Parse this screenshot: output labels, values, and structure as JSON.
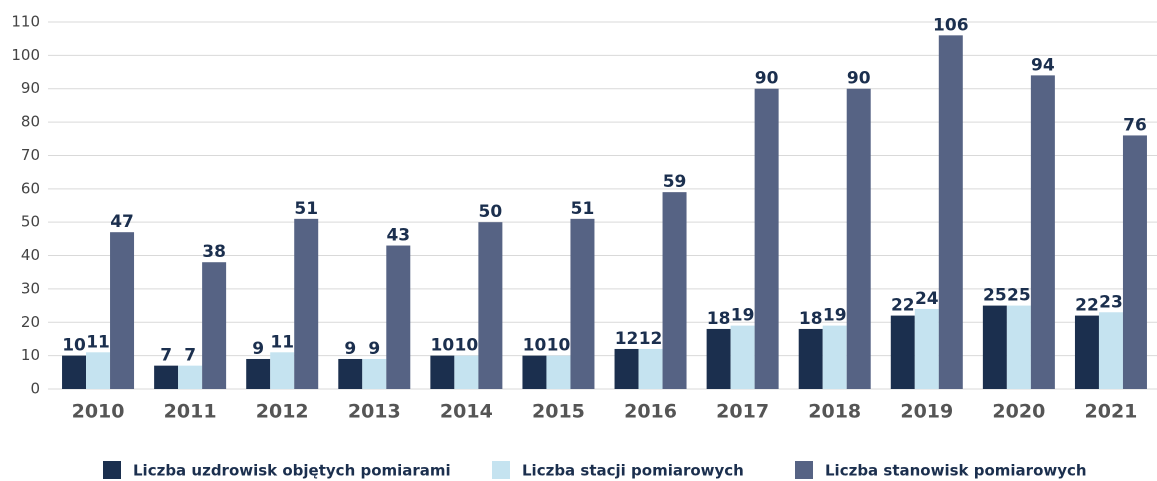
{
  "chart_data": {
    "type": "bar",
    "categories": [
      "2010",
      "2011",
      "2012",
      "2013",
      "2014",
      "2015",
      "2016",
      "2017",
      "2018",
      "2019",
      "2020",
      "2021"
    ],
    "series": [
      {
        "name": "Liczba uzdrowisk objętych pomiarami",
        "color": "#1b2f4e",
        "values": [
          10,
          7,
          9,
          9,
          10,
          10,
          12,
          18,
          18,
          22,
          25,
          22
        ]
      },
      {
        "name": "Liczba stacji pomiarowych",
        "color": "#c5e3f0",
        "values": [
          11,
          7,
          11,
          9,
          10,
          10,
          12,
          19,
          19,
          24,
          25,
          23
        ]
      },
      {
        "name": "Liczba stanowisk pomiarowych",
        "color": "#566384",
        "values": [
          47,
          38,
          51,
          43,
          50,
          51,
          59,
          90,
          90,
          106,
          94,
          76
        ]
      }
    ],
    "ylim": [
      0,
      110
    ],
    "yticks": [
      0,
      10,
      20,
      30,
      40,
      50,
      60,
      70,
      80,
      90,
      100,
      110
    ],
    "grid": true,
    "legend": "bottom"
  }
}
